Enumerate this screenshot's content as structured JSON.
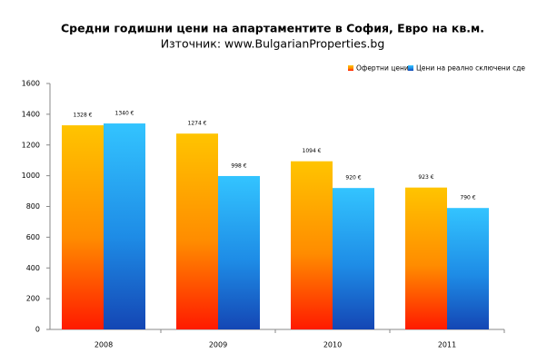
{
  "chart_data": {
    "type": "bar",
    "title": "Средни годишни цени на апартаментите в София, Евро на кв.м.",
    "subtitle": "Източник: www.BulgarianProperties.bg",
    "categories": [
      "2008",
      "2009",
      "2010",
      "2011"
    ],
    "series": [
      {
        "name": "Офертни цени",
        "color": "#ffc400",
        "values": [
          1328,
          1274,
          1094,
          923
        ],
        "value_labels": [
          "1328 €",
          "1274 €",
          "1094 €",
          "923 €"
        ]
      },
      {
        "name": "Цени на реално сключени сде",
        "color": "#33c4ff",
        "values": [
          1340,
          998,
          920,
          790
        ],
        "value_labels": [
          "1340 €",
          "998 €",
          "920 €",
          "790 €"
        ]
      }
    ],
    "ylim": [
      0,
      1600
    ],
    "yticks": [
      0,
      200,
      400,
      600,
      800,
      1000,
      1200,
      1400,
      1600
    ],
    "grid": false
  }
}
